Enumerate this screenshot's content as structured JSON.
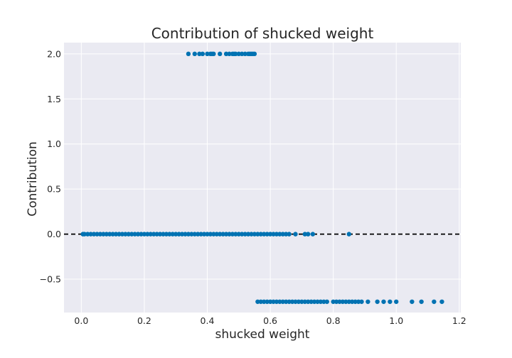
{
  "chart_data": {
    "type": "scatter",
    "title": "Contribution of shucked weight",
    "xlabel": "shucked weight",
    "ylabel": "Contribution",
    "xlim": [
      -0.055,
      1.205
    ],
    "ylim": [
      -0.87,
      2.125
    ],
    "xticks": [
      0.0,
      0.2,
      0.4,
      0.6,
      0.8,
      1.0,
      1.2
    ],
    "xtick_labels": [
      "0.0",
      "0.2",
      "0.4",
      "0.6",
      "0.8",
      "1.0",
      "1.2"
    ],
    "yticks": [
      -0.5,
      0.0,
      0.5,
      1.0,
      1.5,
      2.0
    ],
    "ytick_labels": [
      "−0.5",
      "0.0",
      "0.5",
      "1.0",
      "1.5",
      "2.0"
    ],
    "grid": true,
    "reference_line": {
      "y": 0.0,
      "style": "dashed",
      "color": "#000000"
    },
    "point_color": "#0072b2",
    "background_color": "#eaeaf2",
    "series": [
      {
        "points": {
          "y": 2.0,
          "x": [
            0.34,
            0.36,
            0.375,
            0.385,
            0.4,
            0.41,
            0.415,
            0.42,
            0.44,
            0.46,
            0.47,
            0.48,
            0.485,
            0.49,
            0.5,
            0.51,
            0.52,
            0.53,
            0.535,
            0.54,
            0.545,
            0.55
          ]
        }
      },
      {
        "points": {
          "y": 0.0,
          "x": [
            0.005,
            0.01,
            0.02,
            0.03,
            0.04,
            0.05,
            0.06,
            0.07,
            0.08,
            0.09,
            0.1,
            0.11,
            0.12,
            0.13,
            0.14,
            0.15,
            0.16,
            0.17,
            0.18,
            0.19,
            0.2,
            0.21,
            0.22,
            0.23,
            0.24,
            0.25,
            0.26,
            0.27,
            0.28,
            0.29,
            0.3,
            0.31,
            0.32,
            0.33,
            0.34,
            0.35,
            0.36,
            0.37,
            0.38,
            0.39,
            0.4,
            0.41,
            0.42,
            0.43,
            0.44,
            0.45,
            0.46,
            0.47,
            0.48,
            0.49,
            0.5,
            0.51,
            0.52,
            0.53,
            0.54,
            0.55,
            0.56,
            0.57,
            0.58,
            0.59,
            0.6,
            0.61,
            0.62,
            0.63,
            0.64,
            0.65,
            0.66,
            0.68,
            0.71,
            0.72,
            0.735,
            0.85
          ]
        }
      },
      {
        "points": {
          "y": -0.75,
          "x": [
            0.56,
            0.57,
            0.58,
            0.59,
            0.6,
            0.61,
            0.62,
            0.63,
            0.64,
            0.65,
            0.66,
            0.67,
            0.68,
            0.69,
            0.7,
            0.71,
            0.72,
            0.73,
            0.74,
            0.75,
            0.76,
            0.77,
            0.78,
            0.8,
            0.81,
            0.82,
            0.83,
            0.84,
            0.85,
            0.86,
            0.87,
            0.88,
            0.89,
            0.91,
            0.94,
            0.96,
            0.98,
            1.0,
            1.05,
            1.08,
            1.12,
            1.145
          ]
        }
      }
    ]
  }
}
